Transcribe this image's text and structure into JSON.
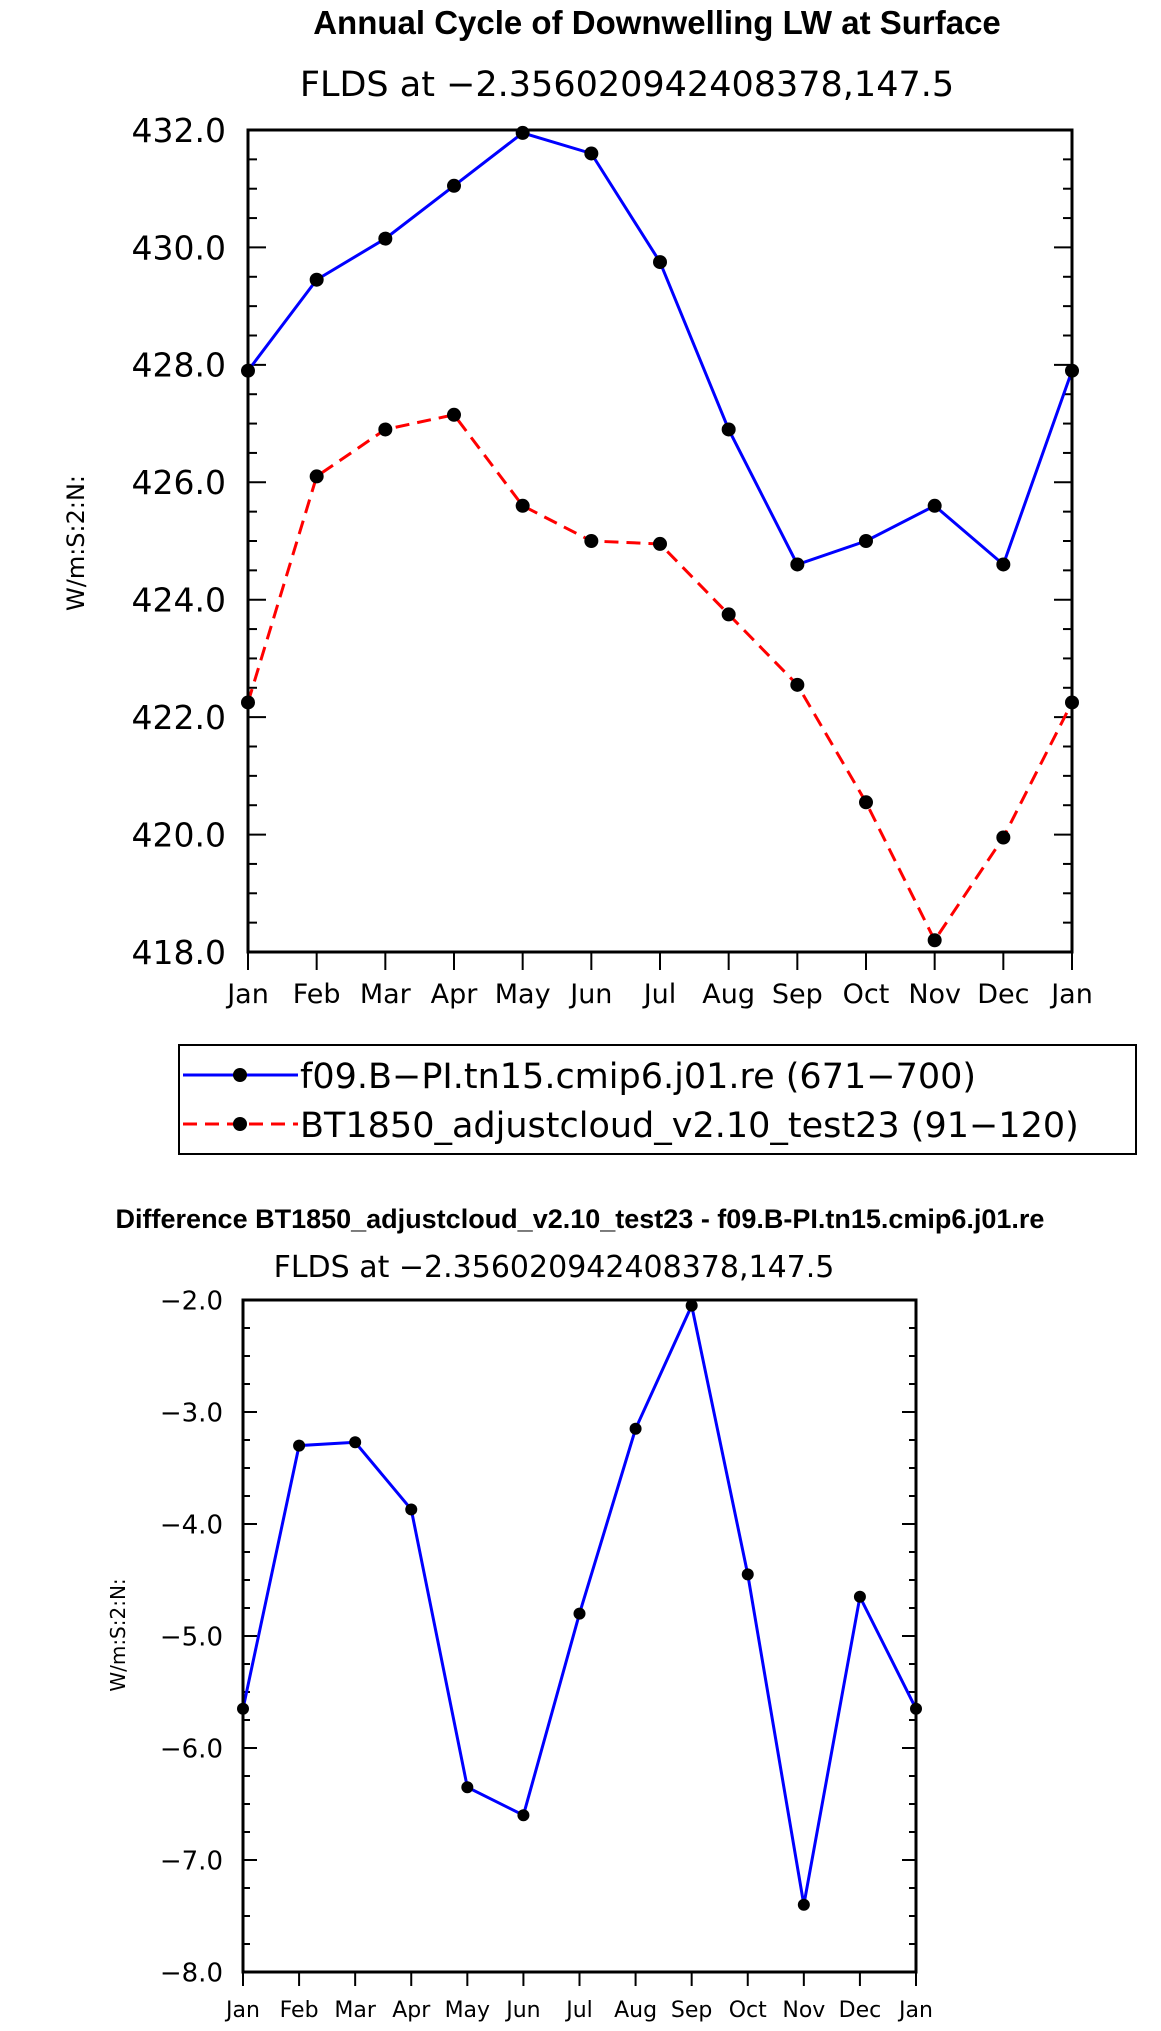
{
  "chart_data": [
    {
      "type": "line",
      "title": "Annual Cycle of Downwelling LW at Surface",
      "subtitle": "FLDS at −2.356020942408378,147.5",
      "ylabel": "W/m:S:2:N:",
      "xlabel": "",
      "categories": [
        "Jan",
        "Feb",
        "Mar",
        "Apr",
        "May",
        "Jun",
        "Jul",
        "Aug",
        "Sep",
        "Oct",
        "Nov",
        "Dec",
        "Jan"
      ],
      "ylim": [
        418,
        432
      ],
      "yticks": [
        "418.0",
        "420.0",
        "422.0",
        "424.0",
        "426.0",
        "428.0",
        "430.0",
        "432.0"
      ],
      "series": [
        {
          "name": "f09.B−PI.tn15.cmip6.j01.re (671−700)",
          "color": "#0000ff",
          "dash": "solid",
          "values": [
            427.9,
            429.45,
            430.15,
            431.05,
            431.95,
            431.6,
            429.75,
            426.9,
            424.6,
            425.0,
            425.6,
            424.6,
            427.9
          ]
        },
        {
          "name": "BT1850_adjustcloud_v2.10_test23 (91−120)",
          "color": "#ff0000",
          "dash": "dashed",
          "values": [
            422.25,
            426.1,
            426.9,
            427.15,
            425.6,
            425.0,
            424.95,
            423.75,
            422.55,
            420.55,
            418.2,
            419.95,
            422.25
          ]
        }
      ],
      "legend": "below"
    },
    {
      "type": "line",
      "title": "Difference BT1850_adjustcloud_v2.10_test23 - f09.B-PI.tn15.cmip6.j01.re",
      "subtitle": "FLDS at −2.356020942408378,147.5",
      "ylabel": "W/m:S:2:N:",
      "xlabel": "",
      "categories": [
        "Jan",
        "Feb",
        "Mar",
        "Apr",
        "May",
        "Jun",
        "Jul",
        "Aug",
        "Sep",
        "Oct",
        "Nov",
        "Dec",
        "Jan"
      ],
      "ylim": [
        -8,
        -2
      ],
      "yticks": [
        "−8.0",
        "−7.0",
        "−6.0",
        "−5.0",
        "−4.0",
        "−3.0",
        "−2.0"
      ],
      "series": [
        {
          "name": "Difference",
          "color": "#0000ff",
          "dash": "solid",
          "values": [
            -5.65,
            -3.3,
            -3.27,
            -3.87,
            -6.35,
            -6.6,
            -4.8,
            -3.15,
            -2.05,
            -4.45,
            -7.4,
            -4.65,
            -5.65
          ]
        }
      ]
    }
  ]
}
